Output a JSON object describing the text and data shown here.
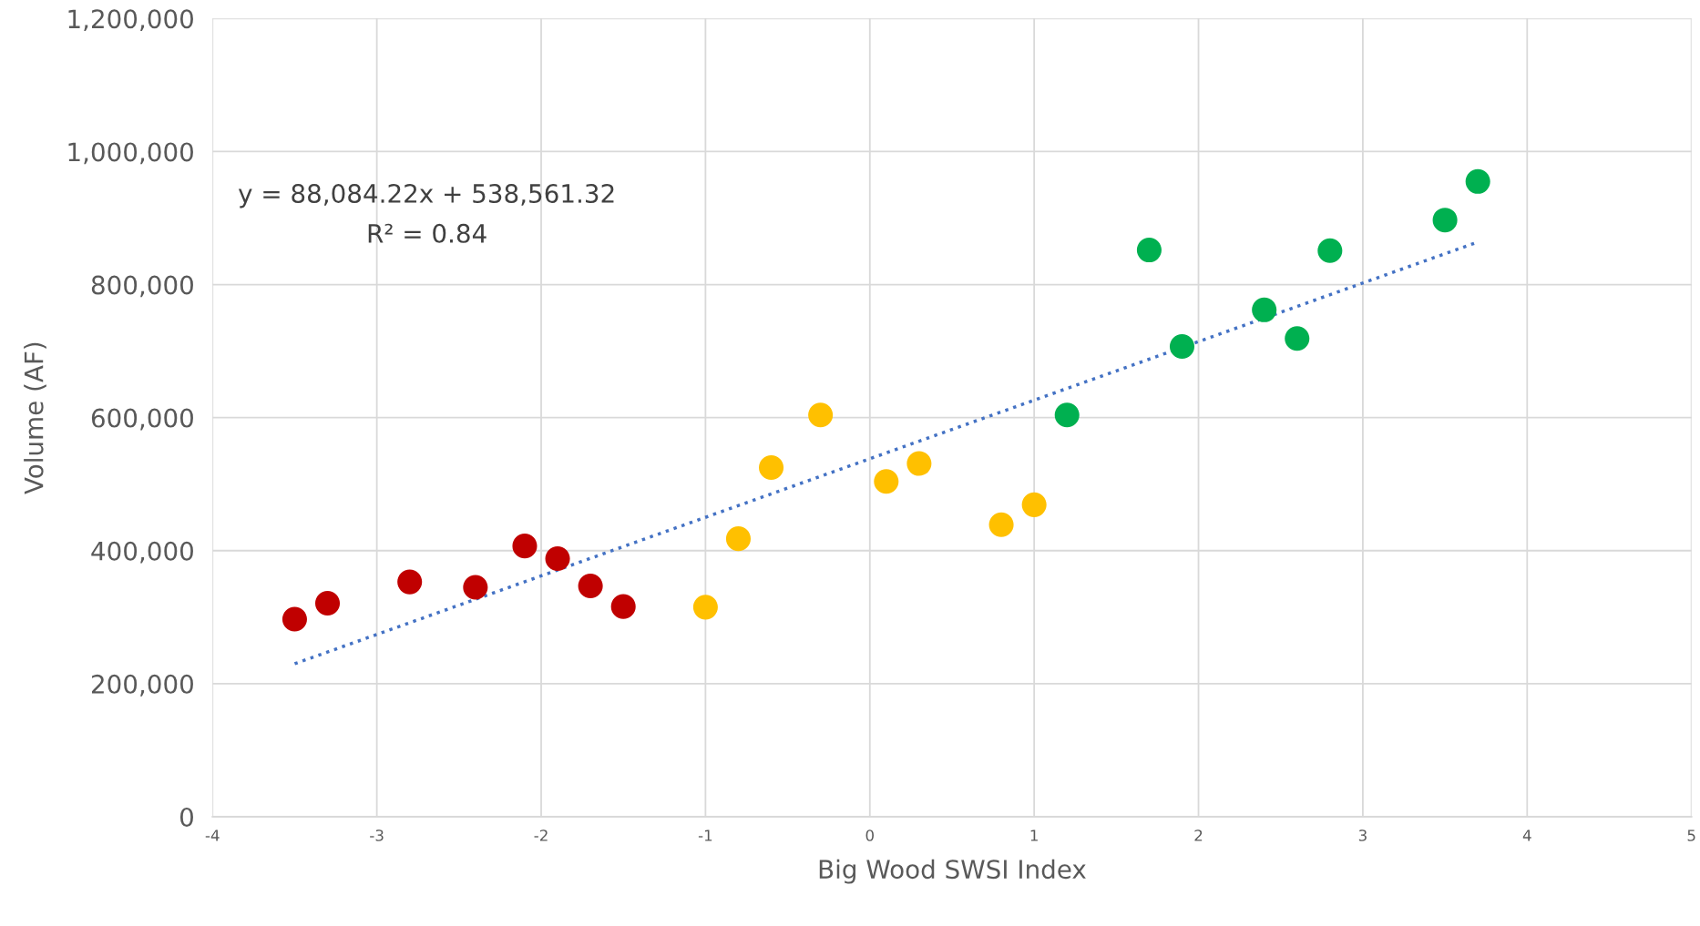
{
  "chart_data": {
    "type": "scatter",
    "xlabel": "Big Wood SWSI Index",
    "ylabel": "Volume (AF)",
    "annotations": [
      "y = 88,084.22x + 538,561.32",
      "R² = 0.84"
    ],
    "series": [
      {
        "color": "#c00000",
        "marker": "circle",
        "x": [
          -3.5,
          -3.3,
          -2.8,
          -2.4,
          -2.1,
          -1.9,
          -1.7,
          -1.5
        ],
        "values": [
          297000,
          321000,
          353000,
          345000,
          407000,
          388000,
          347000,
          316000
        ]
      },
      {
        "color": "#ffc000",
        "marker": "circle",
        "x": [
          -1.0,
          -0.8,
          -0.6,
          -0.3,
          0.1,
          0.3,
          0.8,
          1.0
        ],
        "values": [
          315000,
          418000,
          525000,
          604000,
          504000,
          531000,
          439000,
          469000
        ]
      },
      {
        "color": "#00b050",
        "marker": "circle",
        "x": [
          1.2,
          1.7,
          1.9,
          2.4,
          2.6,
          2.8,
          3.5,
          3.7
        ],
        "values": [
          604000,
          852000,
          707000,
          762000,
          719000,
          851000,
          897000,
          955000
        ]
      },
      {
        "type": "line",
        "color": "#4472c4",
        "line_style": "dotted",
        "marker": "none",
        "x": [
          -3.5,
          3.7
        ],
        "values": [
          230000,
          864000
        ]
      }
    ],
    "xlim": [
      -4,
      5
    ],
    "xticks": [
      -4,
      -3,
      -2,
      -1,
      0,
      1,
      2,
      3,
      4,
      5
    ],
    "ylim": [
      0,
      1200000
    ],
    "yticks": [
      {
        "value": 0,
        "label": "0"
      },
      {
        "value": 200000,
        "label": "200,000"
      },
      {
        "value": 400000,
        "label": "400,000"
      },
      {
        "value": 600000,
        "label": "600,000"
      },
      {
        "value": 800000,
        "label": "800,000"
      },
      {
        "value": 1000000,
        "label": "1,000,000"
      },
      {
        "value": 1200000,
        "label": "1,200,000"
      }
    ],
    "grid": true,
    "legend": false
  }
}
